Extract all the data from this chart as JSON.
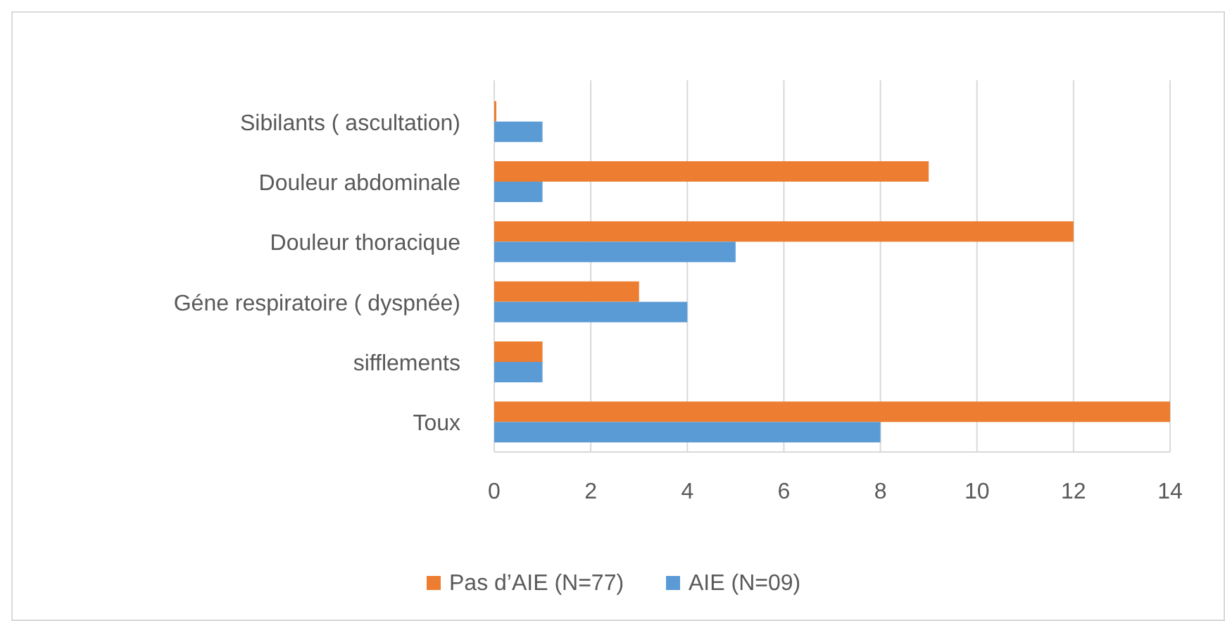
{
  "chart_data": {
    "type": "bar",
    "orientation": "horizontal",
    "categories": [
      "Sibilants ( ascultation)",
      "Douleur abdominale",
      "Douleur thoracique",
      "Géne respiratoire ( dyspnée)",
      "sifflements",
      "Toux"
    ],
    "series": [
      {
        "name": "Pas d’AIE (N=77)",
        "color": "#ed7d31",
        "values": [
          0,
          9,
          12,
          3,
          1,
          14
        ]
      },
      {
        "name": "AIE (N=09)",
        "color": "#5b9bd5",
        "values": [
          1,
          1,
          5,
          4,
          1,
          8
        ]
      }
    ],
    "xlim": [
      0,
      14
    ],
    "xticks": [
      0,
      2,
      4,
      6,
      8,
      10,
      12,
      14
    ],
    "grid": "x",
    "legend": "bottom"
  }
}
